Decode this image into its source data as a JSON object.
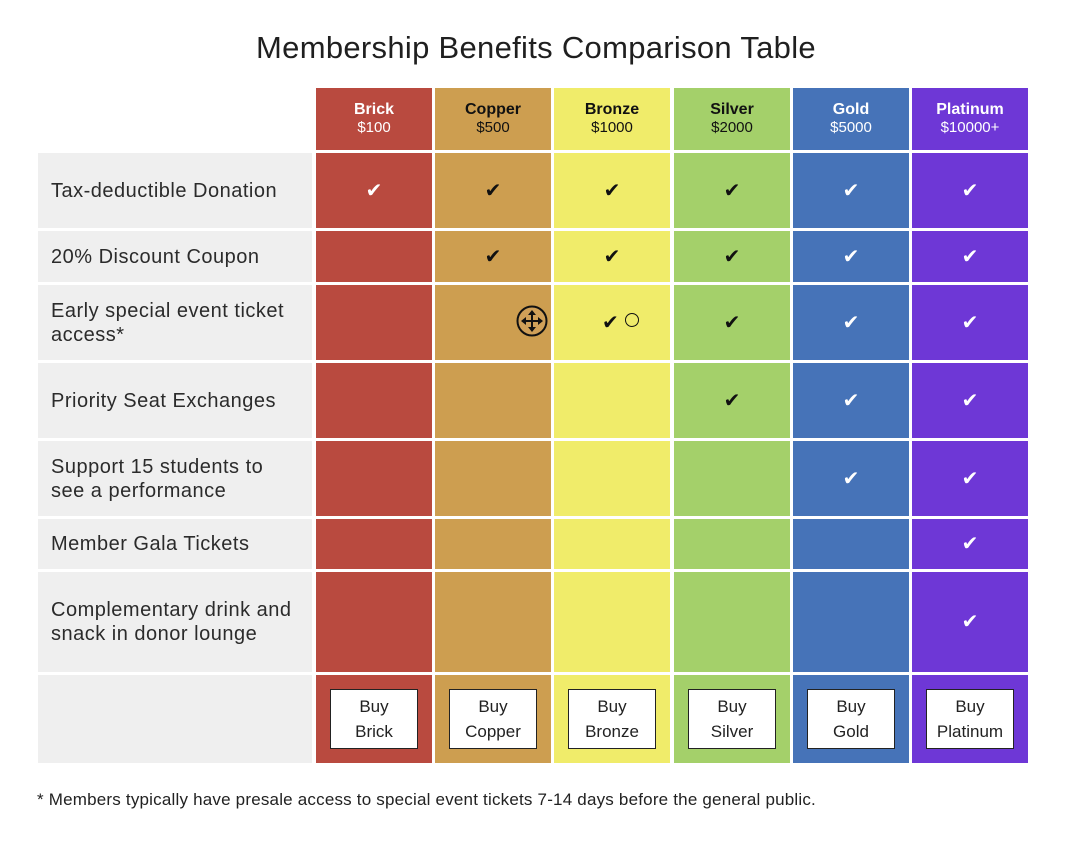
{
  "title": "Membership Benefits Comparison Table",
  "tiers": [
    {
      "name": "Brick",
      "price": "$100",
      "color": "#b94a3f",
      "text": "light",
      "buy": "Buy\nBrick"
    },
    {
      "name": "Copper",
      "price": "$500",
      "color": "#cd9e50",
      "text": "dark",
      "buy": "Buy\nCopper"
    },
    {
      "name": "Bronze",
      "price": "$1000",
      "color": "#f0ec6a",
      "text": "dark",
      "buy": "Buy\nBronze"
    },
    {
      "name": "Silver",
      "price": "$2000",
      "color": "#a4d06a",
      "text": "dark",
      "buy": "Buy\nSilver"
    },
    {
      "name": "Gold",
      "price": "$5000",
      "color": "#4673b8",
      "text": "light",
      "buy": "Buy\nGold"
    },
    {
      "name": "Platinum",
      "price": "$10000+",
      "color": "#6e37d6",
      "text": "light",
      "buy": "Buy\nPlatinum"
    }
  ],
  "check_symbol": "✔",
  "benefits": [
    {
      "label": "Tax-deductible Donation",
      "checks": [
        true,
        true,
        true,
        true,
        true,
        true
      ]
    },
    {
      "label": "20% Discount Coupon",
      "checks": [
        false,
        true,
        true,
        true,
        true,
        true
      ]
    },
    {
      "label": "Early special event ticket access*",
      "checks": [
        false,
        false,
        true,
        true,
        true,
        true
      ]
    },
    {
      "label": "Priority Seat Exchanges",
      "checks": [
        false,
        false,
        false,
        true,
        true,
        true
      ]
    },
    {
      "label": "Support 15 students to see a performance",
      "checks": [
        false,
        false,
        false,
        false,
        true,
        true
      ]
    },
    {
      "label": "Member Gala Tickets",
      "checks": [
        false,
        false,
        false,
        false,
        false,
        true
      ]
    },
    {
      "label": "Complementary drink and snack in donor lounge",
      "checks": [
        false,
        false,
        false,
        false,
        false,
        true
      ]
    }
  ],
  "footnote": "* Members typically have presale access to special event tickets 7-14 days before the general public."
}
